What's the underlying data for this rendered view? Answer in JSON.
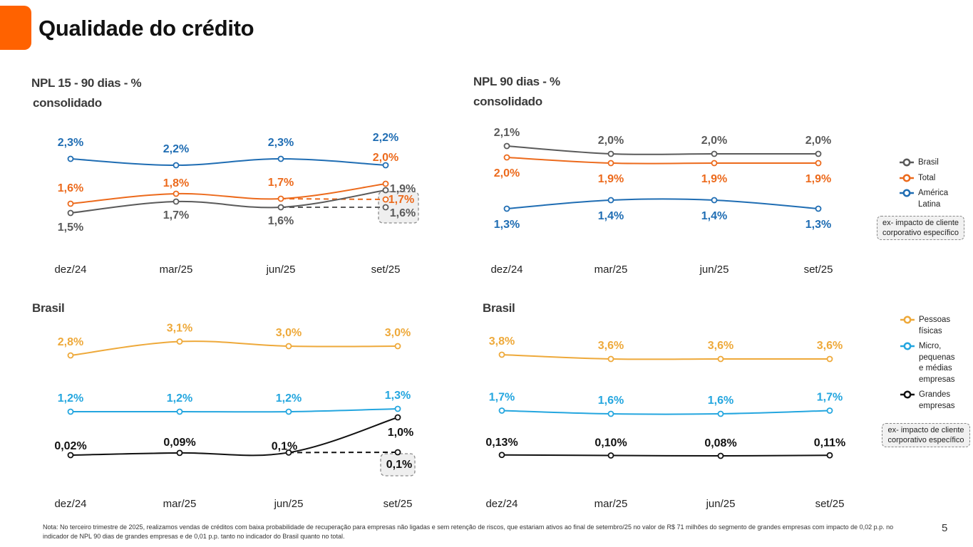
{
  "page": {
    "title": "Qualidade do crédito",
    "page_number": "5",
    "footnote": "Nota: No terceiro trimestre de 2025, realizamos vendas de créditos com baixa probabilidade de recuperação para empresas não ligadas e sem retenção de riscos, que estariam ativos ao final de setembro/25 no valor de R$ 71 milhões do segmento de grandes empresas com impacto de 0,02 p.p. no indicador de NPL 90 dias de grandes empresas e de 0,01 p.p. tanto no indicador do Brasil quanto no total."
  },
  "panels": {
    "top_left": {
      "title_line1": "NPL 15 - 90 dias - %",
      "title_line2": "consolidado"
    },
    "top_right": {
      "title_line1": "NPL 90 dias - %",
      "title_line2": "consolidado"
    },
    "bottom_left": {
      "title_line1": "Brasil"
    },
    "bottom_right": {
      "title_line1": "Brasil"
    }
  },
  "legends": {
    "consolidated": [
      {
        "label": "Brasil",
        "color": "#5a5a5a"
      },
      {
        "label": "Total",
        "color": "#ec6a1c"
      },
      {
        "label": "América Latina",
        "color": "#1f6db3"
      }
    ],
    "segments": [
      {
        "label": "Pessoas físicas",
        "color": "#eea93a"
      },
      {
        "label": "Micro, pequenas e médias empresas",
        "color": "#24a6df"
      },
      {
        "label": "Grandes empresas",
        "color": "#111111"
      }
    ],
    "ex_impact_label": "ex- impacto de cliente corporativo específico"
  },
  "chart_data": [
    {
      "type": "line",
      "title": "NPL 15 - 90 dias - % consolidado",
      "categories": [
        "dez/24",
        "mar/25",
        "jun/25",
        "set/25"
      ],
      "series": [
        {
          "name": "América Latina",
          "color": "#1f6db3",
          "values": [
            2.3,
            2.2,
            2.3,
            2.2
          ],
          "labels": [
            "2,3%",
            "2,2%",
            "2,3%",
            "2,2%"
          ]
        },
        {
          "name": "Total",
          "color": "#ec6a1c",
          "values": [
            1.6,
            1.8,
            1.7,
            2.0
          ],
          "labels": [
            "1,6%",
            "1,8%",
            "1,7%",
            "2,0%"
          ]
        },
        {
          "name": "Brasil",
          "color": "#5a5a5a",
          "values": [
            1.5,
            1.7,
            1.6,
            1.9
          ],
          "labels": [
            "1,5%",
            "1,7%",
            "1,6%",
            "1,9%"
          ]
        }
      ],
      "ex_impact": [
        {
          "series": "Total",
          "value": 1.7,
          "label": "1,7%"
        },
        {
          "series": "Brasil",
          "value": 1.6,
          "label": "1,6%"
        }
      ]
    },
    {
      "type": "line",
      "title": "NPL 90 dias - % consolidado",
      "categories": [
        "dez/24",
        "mar/25",
        "jun/25",
        "set/25"
      ],
      "series": [
        {
          "name": "Brasil",
          "color": "#5a5a5a",
          "values": [
            2.1,
            2.0,
            2.0,
            2.0
          ],
          "labels": [
            "2,1%",
            "2,0%",
            "2,0%",
            "2,0%"
          ]
        },
        {
          "name": "Total",
          "color": "#ec6a1c",
          "values": [
            2.0,
            1.9,
            1.9,
            1.9
          ],
          "labels": [
            "2,0%",
            "1,9%",
            "1,9%",
            "1,9%"
          ]
        },
        {
          "name": "América Latina",
          "color": "#1f6db3",
          "values": [
            1.3,
            1.4,
            1.4,
            1.3
          ],
          "labels": [
            "1,3%",
            "1,4%",
            "1,4%",
            "1,3%"
          ]
        }
      ]
    },
    {
      "type": "line",
      "title": "Brasil (NPL 15 - 90 dias)",
      "categories": [
        "dez/24",
        "mar/25",
        "jun/25",
        "set/25"
      ],
      "series": [
        {
          "name": "Pessoas físicas",
          "color": "#eea93a",
          "values": [
            2.8,
            3.1,
            3.0,
            3.0
          ],
          "labels": [
            "2,8%",
            "3,1%",
            "3,0%",
            "3,0%"
          ]
        },
        {
          "name": "Micro, pequenas e médias empresas",
          "color": "#24a6df",
          "values": [
            1.2,
            1.2,
            1.2,
            1.3
          ],
          "labels": [
            "1,2%",
            "1,2%",
            "1,2%",
            "1,3%"
          ]
        },
        {
          "name": "Grandes empresas",
          "color": "#111111",
          "values": [
            0.02,
            0.09,
            0.1,
            1.0
          ],
          "labels": [
            "0,02%",
            "0,09%",
            "0,1%",
            "1,0%"
          ]
        }
      ],
      "ex_impact": [
        {
          "series": "Grandes empresas",
          "value": 0.1,
          "label": "0,1%"
        }
      ]
    },
    {
      "type": "line",
      "title": "Brasil (NPL 90 dias)",
      "categories": [
        "dez/24",
        "mar/25",
        "jun/25",
        "set/25"
      ],
      "series": [
        {
          "name": "Pessoas físicas",
          "color": "#eea93a",
          "values": [
            3.8,
            3.6,
            3.6,
            3.6
          ],
          "labels": [
            "3,8%",
            "3,6%",
            "3,6%",
            "3,6%"
          ]
        },
        {
          "name": "Micro, pequenas e médias empresas",
          "color": "#24a6df",
          "values": [
            1.7,
            1.6,
            1.6,
            1.7
          ],
          "labels": [
            "1,7%",
            "1,6%",
            "1,6%",
            "1,7%"
          ]
        },
        {
          "name": "Grandes empresas",
          "color": "#111111",
          "values": [
            0.13,
            0.1,
            0.08,
            0.11
          ],
          "labels": [
            "0,13%",
            "0,10%",
            "0,08%",
            "0,11%"
          ]
        }
      ]
    }
  ]
}
